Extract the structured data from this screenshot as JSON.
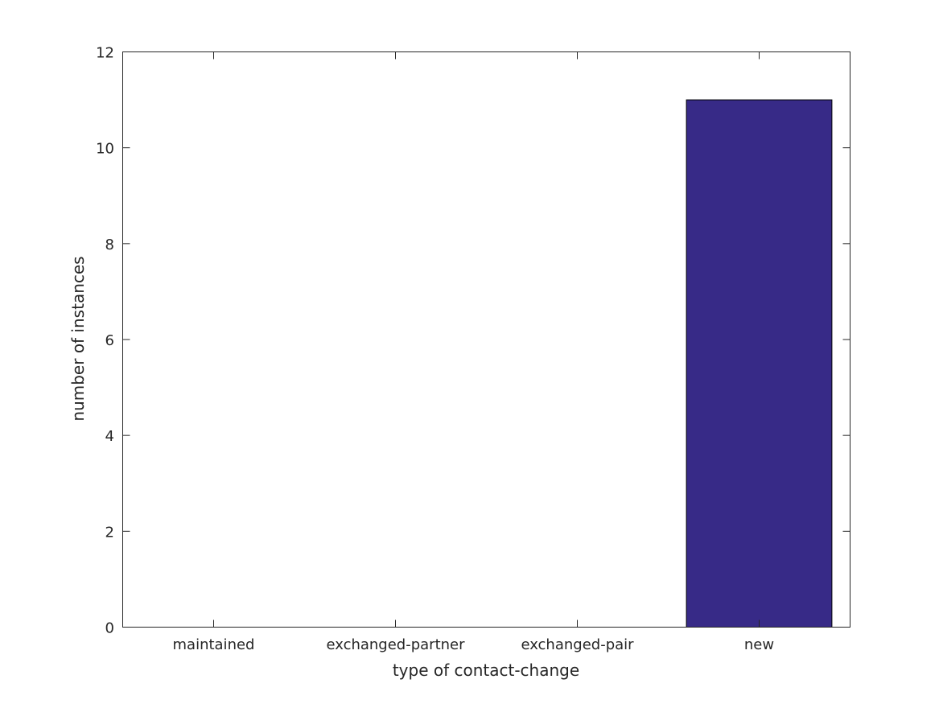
{
  "chart_data": {
    "type": "bar",
    "categories": [
      "maintained",
      "exchanged-partner",
      "exchanged-pair",
      "new"
    ],
    "values": [
      0,
      0,
      0,
      11
    ],
    "title": "",
    "xlabel": "type of contact-change",
    "ylabel": "number of instances",
    "ylim": [
      0,
      12
    ],
    "yticks": [
      0,
      2,
      4,
      6,
      8,
      10,
      12
    ],
    "grid": false,
    "bar_color": "#372a87"
  }
}
